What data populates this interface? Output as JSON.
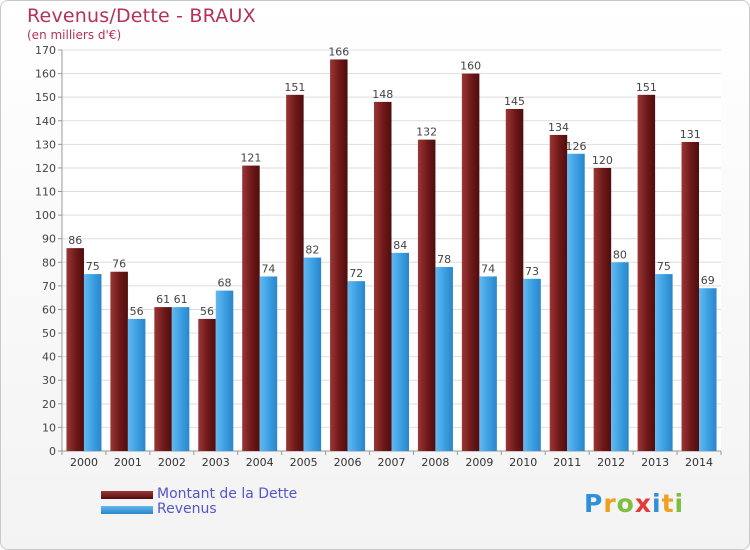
{
  "chart_data": {
    "type": "bar",
    "title": "Revenus/Dette - BRAUX",
    "subtitle": "(en milliers d'€)",
    "categories": [
      "2000",
      "2001",
      "2002",
      "2003",
      "2004",
      "2005",
      "2006",
      "2007",
      "2008",
      "2009",
      "2010",
      "2011",
      "2012",
      "2013",
      "2014"
    ],
    "series": [
      {
        "name": "Montant de la Dette",
        "color": "#7a1c1c",
        "values": [
          86,
          76,
          61,
          56,
          121,
          151,
          166,
          148,
          132,
          160,
          145,
          134,
          120,
          151,
          131
        ]
      },
      {
        "name": "Revenus",
        "color": "#3a9ee2",
        "values": [
          75,
          56,
          61,
          68,
          74,
          82,
          72,
          84,
          78,
          74,
          73,
          126,
          80,
          75,
          69
        ]
      }
    ],
    "ylim": [
      0,
      170
    ],
    "yticks": [
      0,
      10,
      20,
      30,
      40,
      50,
      60,
      70,
      80,
      90,
      100,
      110,
      120,
      130,
      140,
      150,
      160,
      170
    ],
    "grid": true,
    "legend_position": "bottom-left"
  },
  "logo": {
    "text": "Proxiti",
    "letters": [
      "P",
      "r",
      "o",
      "x",
      "i",
      "t",
      "i"
    ],
    "colors": [
      "#2f8fd8",
      "#f0a020",
      "#7fbf3f",
      "#e23a3a",
      "#2f8fd8",
      "#f0a020",
      "#7fbf3f"
    ]
  }
}
